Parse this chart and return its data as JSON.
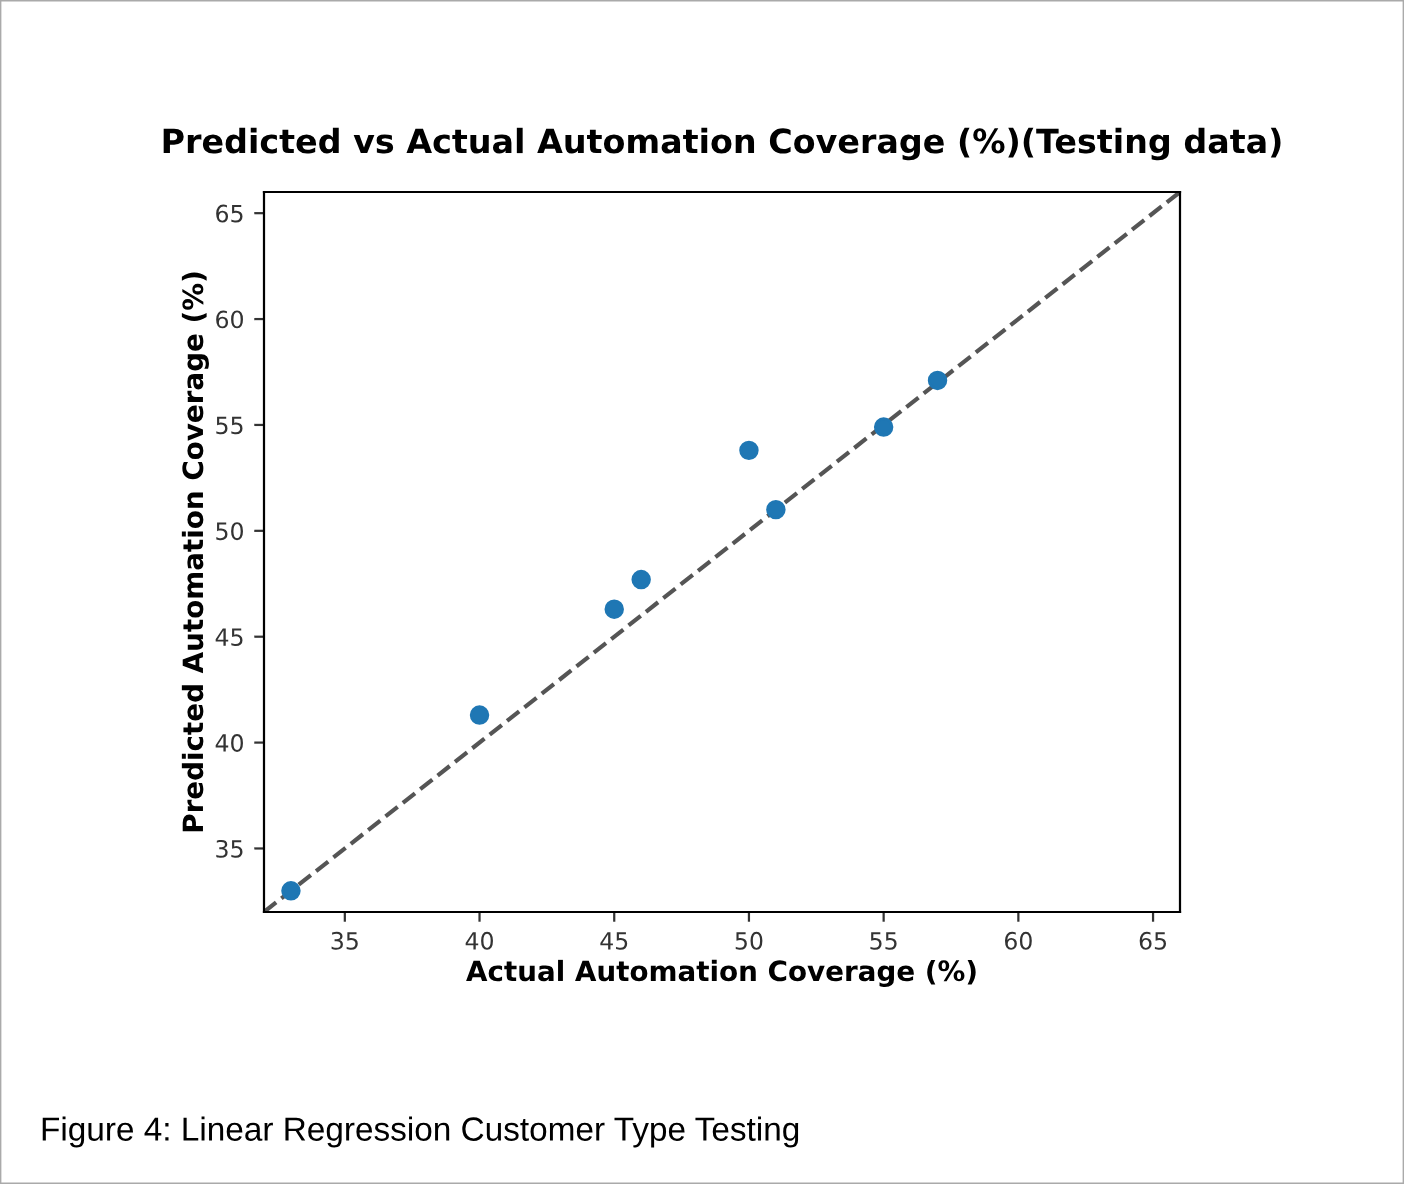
{
  "chart_data": {
    "type": "scatter",
    "title": "Predicted vs Actual Automation Coverage (%)(Testing data)",
    "xlabel": "Actual Automation Coverage (%)",
    "ylabel": "Predicted Automation Coverage (%)",
    "series": [
      {
        "color": "#1f77b4",
        "marker": "circle",
        "x": [
          33,
          40,
          45,
          46,
          50,
          51,
          55,
          57
        ],
        "values": [
          33.0,
          41.3,
          46.3,
          47.7,
          53.8,
          51.0,
          54.9,
          57.1
        ]
      },
      {
        "type": "line",
        "color": "#555555",
        "line_style": "dashed",
        "x": [
          32,
          66
        ],
        "values": [
          32,
          66
        ]
      }
    ],
    "xlim": [
      32,
      66
    ],
    "ylim": [
      32,
      66
    ],
    "xticks": [
      35,
      40,
      45,
      50,
      55,
      60,
      65
    ],
    "yticks": [
      35,
      40,
      45,
      50,
      55,
      60,
      65
    ],
    "grid": false,
    "legend": false,
    "annotations": [
      "Figure 4: Linear Regression Customer Type Testing"
    ]
  }
}
